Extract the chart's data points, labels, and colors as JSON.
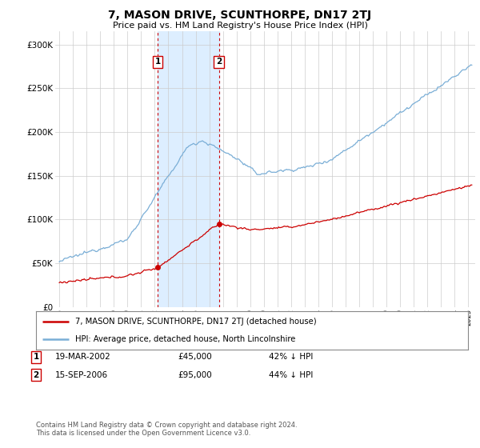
{
  "title": "7, MASON DRIVE, SCUNTHORPE, DN17 2TJ",
  "subtitle": "Price paid vs. HM Land Registry's House Price Index (HPI)",
  "ylabel_ticks": [
    "£0",
    "£50K",
    "£100K",
    "£150K",
    "£200K",
    "£250K",
    "£300K"
  ],
  "ytick_values": [
    0,
    50000,
    100000,
    150000,
    200000,
    250000,
    300000
  ],
  "ylim": [
    0,
    315000
  ],
  "xlim_start": 1994.7,
  "xlim_end": 2025.5,
  "sale1_date": 2002.21,
  "sale1_price": 45000,
  "sale1_label": "1",
  "sale2_date": 2006.71,
  "sale2_price": 95000,
  "sale2_label": "2",
  "shaded_region_start": 2002.21,
  "shaded_region_end": 2006.71,
  "title_fontsize": 10,
  "subtitle_fontsize": 8,
  "axis_fontsize": 7.5,
  "legend_label_red": "7, MASON DRIVE, SCUNTHORPE, DN17 2TJ (detached house)",
  "legend_label_blue": "HPI: Average price, detached house, North Lincolnshire",
  "red_color": "#cc0000",
  "blue_color": "#7aaed6",
  "shaded_color": "#ddeeff",
  "box_color": "#cc0000",
  "background_color": "#ffffff",
  "grid_color": "#cccccc"
}
